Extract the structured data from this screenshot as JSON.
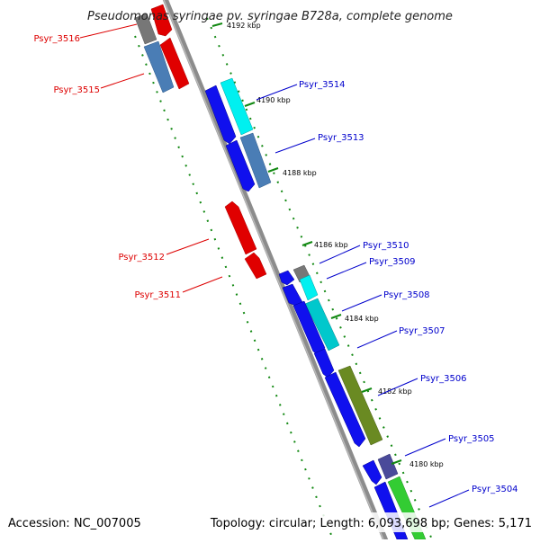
{
  "title": "Pseudomonas syringae pv. syringae B728a, complete genome",
  "footer": {
    "accession": "Accession: NC_007005",
    "summary": "Topology: circular; Length: 6,093,698 bp; Genes: 5,171"
  },
  "colors": {
    "backbone": "#8c8c8c",
    "tick": "#118811",
    "left_label": "#dd0000",
    "right_label": "#0000cc"
  },
  "ticks": [
    {
      "label": "4192 kbp"
    },
    {
      "label": "4190 kbp"
    },
    {
      "label": "4188 kbp"
    },
    {
      "label": "4186 kbp"
    },
    {
      "label": "4184 kbp"
    },
    {
      "label": "4182 kbp"
    },
    {
      "label": "4180 kbp"
    }
  ],
  "genes": [
    {
      "label": "Psyr_3516",
      "side": "left",
      "color": "#e00000"
    },
    {
      "label": "Psyr_3515",
      "side": "left",
      "color": "#4a7db5"
    },
    {
      "label": "Psyr_3514",
      "side": "right",
      "color": "#00e0e0"
    },
    {
      "label": "Psyr_3513",
      "side": "right",
      "color": "#4a7db5"
    },
    {
      "label": "Psyr_3512",
      "side": "left",
      "color": "#e00000"
    },
    {
      "label": "Psyr_3511",
      "side": "left",
      "color": "#e00000"
    },
    {
      "label": "Psyr_3510",
      "side": "right",
      "color": "#777777"
    },
    {
      "label": "Psyr_3509",
      "side": "right",
      "color": "#00dddd"
    },
    {
      "label": "Psyr_3508",
      "side": "right",
      "color": "#00c0c8"
    },
    {
      "label": "Psyr_3507",
      "side": "right",
      "color": "#0000ee"
    },
    {
      "label": "Psyr_3506",
      "side": "right",
      "color": "#6a8a22"
    },
    {
      "label": "Psyr_3505",
      "side": "right",
      "color": "#4a4a9a"
    },
    {
      "label": "Psyr_3504",
      "side": "right",
      "color": "#33cc33"
    }
  ]
}
